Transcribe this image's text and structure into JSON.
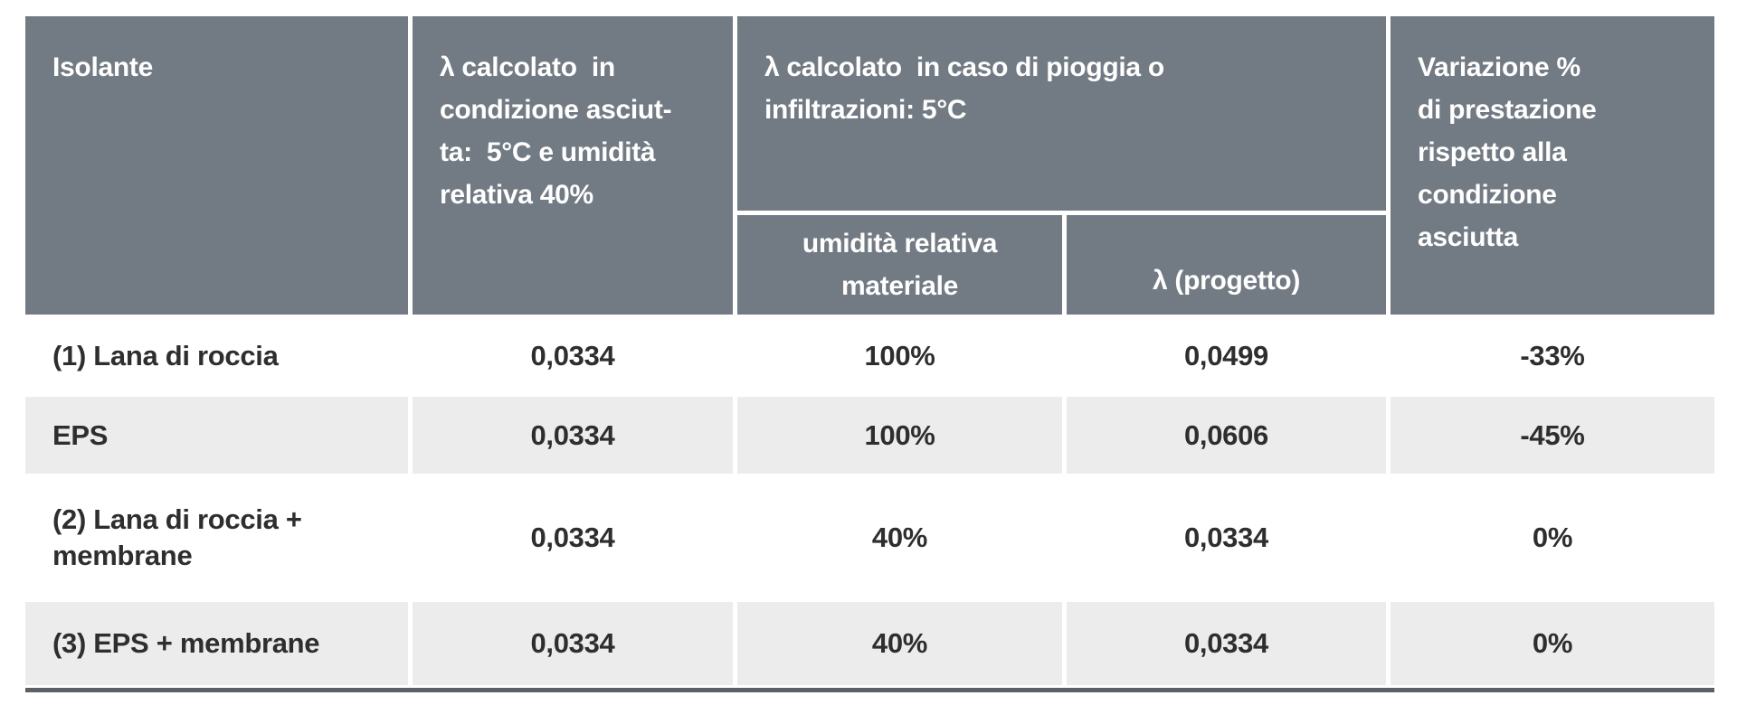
{
  "table": {
    "header": {
      "col_isolante": "Isolante",
      "col_dry": "λ calcolato  in\ncondizione asciut-\nta:  5°C e umidità\nrelativa 40%",
      "col_wet_group": "λ calcolato  in caso di pioggia o\ninfiltrazioni: 5°C",
      "col_wet_humidity": "umidità relativa\nmateriale",
      "col_wet_lambda": "λ (progetto)",
      "col_variation": "Variazione %\ndi prestazione\nrispetto alla\ncondizione\nasciutta"
    },
    "rows": [
      {
        "isolante": "(1) Lana di roccia",
        "lambda_dry": "0,0334",
        "humidity": "100%",
        "lambda_design": "0,0499",
        "variation": "-33%"
      },
      {
        "isolante": "EPS",
        "lambda_dry": "0,0334",
        "humidity": "100%",
        "lambda_design": "0,0606",
        "variation": "-45%"
      },
      {
        "isolante": "(2) Lana di roccia + membrane",
        "lambda_dry": "0,0334",
        "humidity": "40%",
        "lambda_design": "0,0334",
        "variation": "0%"
      },
      {
        "isolante": "(3) EPS + membrane",
        "lambda_dry": "0,0334",
        "humidity": "40%",
        "lambda_design": "0,0334",
        "variation": "0%"
      }
    ],
    "colors": {
      "header_bg": "#727a83",
      "row_bg": "#ffffff",
      "row_alt_bg": "#ececec",
      "header_text": "#ffffff",
      "body_text": "#2e2e2e",
      "bottom_border": "#5a6065"
    }
  },
  "chart_data": {
    "type": "table",
    "columns": [
      "Isolante",
      "λ calcolato in condizione asciutta: 5°C e umidità relativa 40%",
      "umidità relativa materiale",
      "λ (progetto)",
      "Variazione % di prestazione rispetto alla condizione asciutta"
    ],
    "group_header": "λ calcolato in caso di pioggia o infiltrazioni: 5°C",
    "rows": [
      [
        "(1) Lana di roccia",
        "0,0334",
        "100%",
        "0,0499",
        "-33%"
      ],
      [
        "EPS",
        "0,0334",
        "100%",
        "0,0606",
        "-45%"
      ],
      [
        "(2) Lana di roccia + membrane",
        "0,0334",
        "40%",
        "0,0334",
        "0%"
      ],
      [
        "(3) EPS + membrane",
        "0,0334",
        "40%",
        "0,0334",
        "0%"
      ]
    ]
  }
}
